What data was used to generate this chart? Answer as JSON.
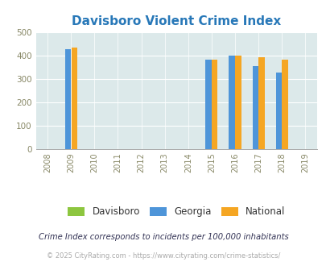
{
  "title": "Davisboro Violent Crime Index",
  "title_color": "#2878b8",
  "years": [
    2008,
    2009,
    2010,
    2011,
    2012,
    2013,
    2014,
    2015,
    2016,
    2017,
    2018,
    2019
  ],
  "bar_years": [
    2009,
    2015,
    2016,
    2017,
    2018
  ],
  "davisboro": [
    0,
    0,
    0,
    0,
    0
  ],
  "georgia": [
    425,
    380,
    400,
    355,
    328
  ],
  "national": [
    433,
    383,
    398,
    393,
    380
  ],
  "davisboro_color": "#8dc63f",
  "georgia_color": "#4e95d9",
  "national_color": "#f5a623",
  "ylim": [
    0,
    500
  ],
  "yticks": [
    0,
    100,
    200,
    300,
    400,
    500
  ],
  "figure_bg": "#ffffff",
  "plot_bg_color": "#dce9ea",
  "legend_labels": [
    "Davisboro",
    "Georgia",
    "National"
  ],
  "footnote1": "Crime Index corresponds to incidents per 100,000 inhabitants",
  "footnote2": "© 2025 CityRating.com - https://www.cityrating.com/crime-statistics/",
  "bar_width": 0.25
}
